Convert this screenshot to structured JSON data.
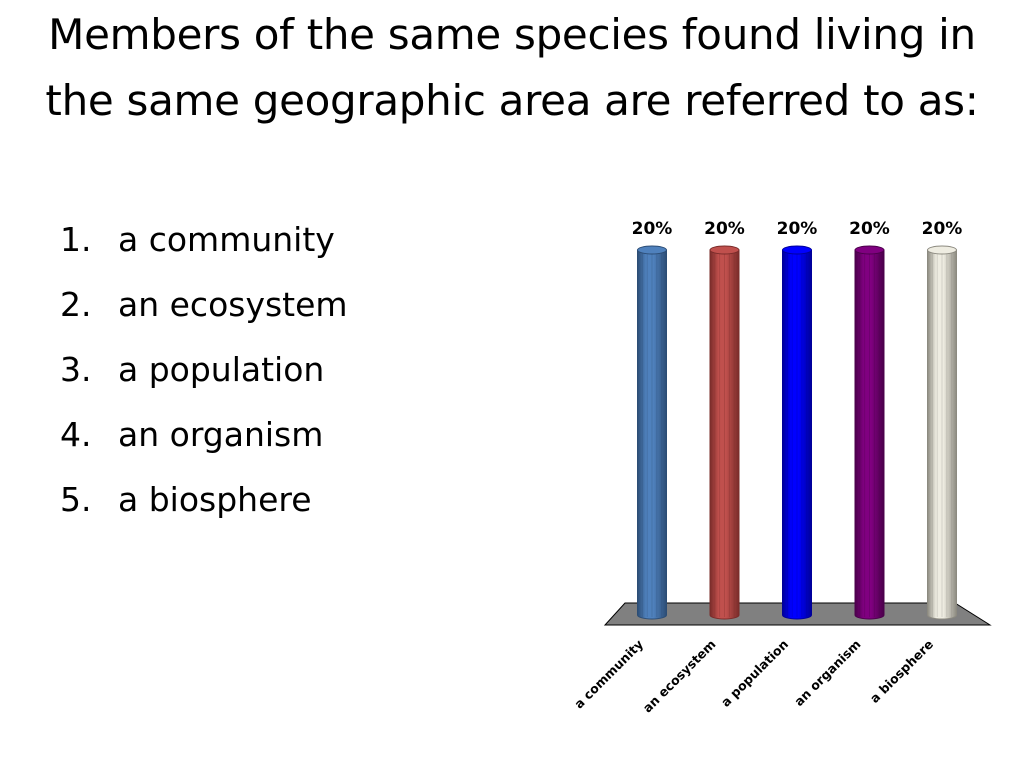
{
  "slide": {
    "title": "Members of the same species found living in the same geographic area are referred to as:"
  },
  "answers": [
    {
      "number": "1.",
      "label": "a community"
    },
    {
      "number": "2.",
      "label": "an ecosystem"
    },
    {
      "number": "3.",
      "label": "a population"
    },
    {
      "number": "4.",
      "label": "an organism"
    },
    {
      "number": "5.",
      "label": "a biosphere"
    }
  ],
  "chart_data": {
    "type": "bar",
    "categories": [
      "a community",
      "an ecosystem",
      "a population",
      "an organism",
      "a biosphere"
    ],
    "values": [
      20,
      20,
      20,
      20,
      20
    ],
    "data_labels": [
      "20%",
      "20%",
      "20%",
      "20%",
      "20%"
    ],
    "colors": [
      "#4f81bd",
      "#c0504d",
      "#0000ff",
      "#800080",
      "#eeece1"
    ],
    "edge_colors": [
      "#2c4d75",
      "#7a2c2a",
      "#000099",
      "#4b004b",
      "#8c8a80"
    ],
    "floor_color": "#808080",
    "ylim": [
      0,
      20
    ],
    "grid": false,
    "legend": "none",
    "style": "3d-cylinder"
  }
}
